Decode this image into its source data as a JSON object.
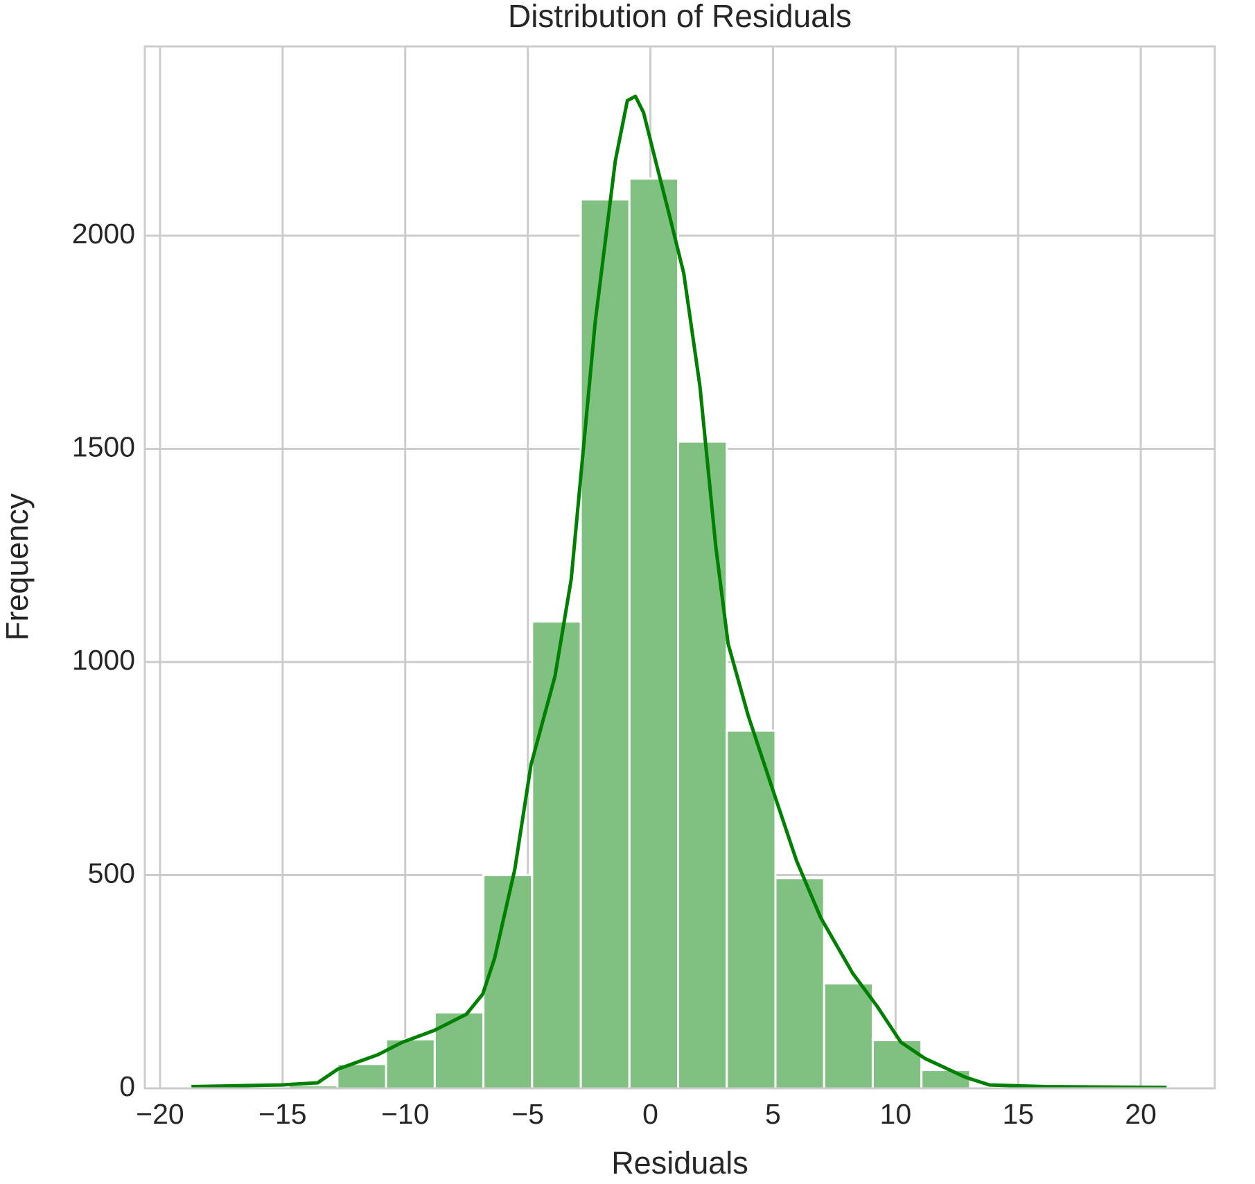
{
  "chart_data": {
    "type": "histogram",
    "title": "Distribution of Residuals",
    "x_label": "Residuals",
    "y_label": "Frequency",
    "bins": [
      -18.72,
      -16.735,
      -14.75,
      -12.765,
      -10.78,
      -8.795,
      -6.81,
      -4.825,
      -2.84,
      -0.855,
      1.13,
      3.115,
      5.1,
      7.085,
      9.07,
      11.055,
      13.04,
      15.025,
      17.01,
      18.995,
      20.98
    ],
    "counts": [
      1,
      1,
      7,
      57,
      115,
      178,
      500,
      1095,
      2085,
      2134,
      1517,
      839,
      493,
      246,
      113,
      43,
      2,
      1,
      1,
      1
    ],
    "color": "#80c080",
    "kde": {
      "color": "#008000",
      "x": [
        -18.72,
        -15.05,
        -13.57,
        -12.75,
        -11.11,
        -10.12,
        -8.81,
        -7.5,
        -6.84,
        -6.35,
        -5.53,
        -4.87,
        -3.89,
        -3.23,
        -2.25,
        -1.43,
        -0.94,
        -0.61,
        -0.28,
        0.21,
        0.71,
        1.36,
        2.02,
        2.67,
        3.17,
        3.99,
        4.97,
        5.96,
        6.94,
        8.25,
        9.24,
        10.22,
        11.2,
        12.85,
        13.83,
        16.13,
        21.05
      ],
      "values": [
        4,
        8,
        13,
        45,
        79,
        108,
        136,
        174,
        221,
        306,
        514,
        759,
        967,
        1194,
        1798,
        2176,
        2317,
        2327,
        2289,
        2176,
        2063,
        1912,
        1647,
        1269,
        1043,
        874,
        704,
        534,
        401,
        270,
        193,
        108,
        70,
        26,
        8,
        4,
        2
      ]
    },
    "xlim": [
      -20.62,
      23.02
    ],
    "ylim": [
      0,
      2444
    ],
    "xticks": [
      {
        "value": -20,
        "label": "−20"
      },
      {
        "value": -15,
        "label": "−15"
      },
      {
        "value": -10,
        "label": "−10"
      },
      {
        "value": -5,
        "label": "−5"
      },
      0,
      5,
      10,
      15,
      20
    ],
    "yticks": [
      0,
      500,
      1000,
      1500,
      2000
    ],
    "grid": true
  }
}
